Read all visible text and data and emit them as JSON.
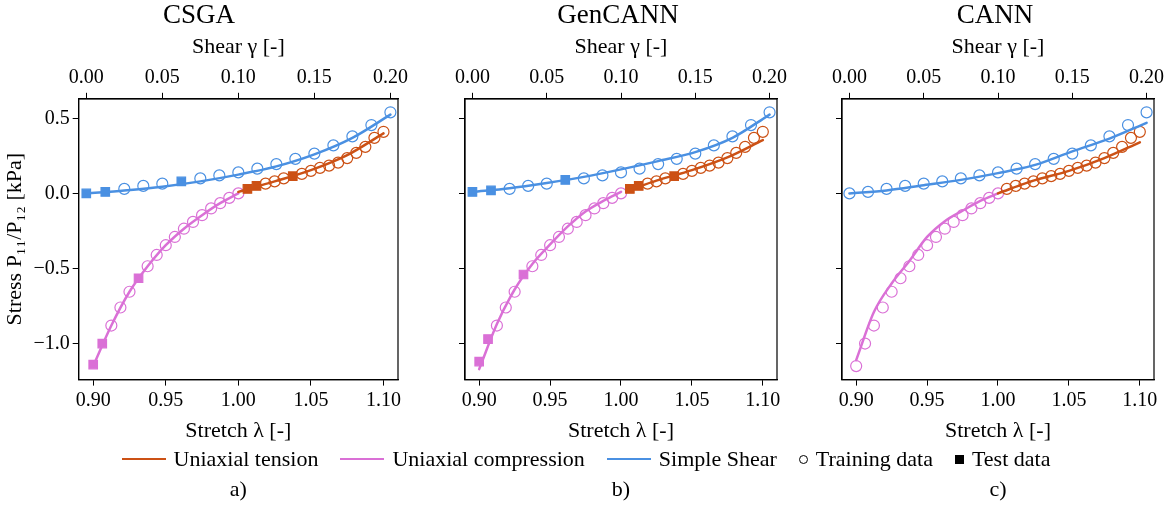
{
  "chart_data": [
    {
      "type": "line",
      "title": "CSGA",
      "xlabel": "Stretch λ [-]",
      "x2label": "Shear γ [-]",
      "ylabel": "Stress P₁₁/P₁₂ [kPa]",
      "legend": "bottom",
      "annotations": [
        "a)"
      ],
      "xlim": [
        0.89,
        1.11
      ],
      "xticks": [
        {
          "value": 0.9,
          "label": "0.90"
        },
        {
          "value": 0.95,
          "label": "0.95"
        },
        {
          "value": 1.0,
          "label": "1.00"
        },
        {
          "value": 1.05,
          "label": "1.05"
        },
        {
          "value": 1.1,
          "label": "1.10"
        }
      ],
      "x2lim": [
        -0.005,
        0.205
      ],
      "x2ticks": [
        {
          "value": 0,
          "label": "0.00"
        },
        {
          "value": 0.05,
          "label": "0.05"
        },
        {
          "value": 0.1,
          "label": "0.10"
        },
        {
          "value": 0.15,
          "label": "0.15"
        },
        {
          "value": 0.2,
          "label": "0.20"
        }
      ],
      "ylim": [
        -1.24,
        0.63
      ],
      "yticks": [
        {
          "value": -1,
          "label": "−1.0"
        },
        {
          "value": -0.5,
          "label": "−0.5"
        },
        {
          "value": 0,
          "label": "0.0"
        },
        {
          "value": 0.5,
          "label": "0.5"
        }
      ],
      "series": [
        {
          "name": "Uniaxial tension",
          "type": "line",
          "color": "#cc5115",
          "marker": "none",
          "x": [
            1.0,
            1.025,
            1.05,
            1.075,
            1.1
          ],
          "values": [
            0.01,
            0.08,
            0.155,
            0.255,
            0.4
          ]
        },
        {
          "name": "Uniaxial compression",
          "type": "line",
          "color": "#da70d6",
          "marker": "none",
          "x": [
            0.9,
            0.9125,
            0.925,
            0.9375,
            0.95,
            0.9625,
            0.975,
            0.9875,
            1.0
          ],
          "values": [
            -1.15,
            -0.88,
            -0.655,
            -0.485,
            -0.345,
            -0.235,
            -0.145,
            -0.065,
            0
          ]
        },
        {
          "name": "Simple Shear",
          "type": "line",
          "color": "#4a90e2",
          "marker": "none",
          "axis": "x2",
          "x": [
            0,
            0.025,
            0.05,
            0.075,
            0.1,
            0.125,
            0.15,
            0.175,
            0.2
          ],
          "values": [
            0,
            0.02,
            0.045,
            0.08,
            0.125,
            0.18,
            0.26,
            0.37,
            0.525
          ]
        },
        {
          "type": "scatter",
          "color": "#cc5115",
          "marker": "circle",
          "x": [
            1.01875,
            1.025,
            1.03125,
            1.04375,
            1.05,
            1.05625,
            1.0625,
            1.06875,
            1.075,
            1.08125,
            1.0875,
            1.09375,
            1.1
          ],
          "values": [
            0.065,
            0.08,
            0.1,
            0.13,
            0.15,
            0.17,
            0.185,
            0.205,
            0.235,
            0.27,
            0.31,
            0.37,
            0.41
          ]
        },
        {
          "type": "scatter",
          "color": "#cc5115",
          "marker": "square",
          "x": [
            1.00625,
            1.0125,
            1.0375
          ],
          "values": [
            0.03,
            0.05,
            0.115
          ]
        },
        {
          "type": "scatter",
          "color": "#da70d6",
          "marker": "circle",
          "x": [
            0.9125,
            0.91875,
            0.925,
            0.9375,
            0.94375,
            0.95,
            0.95625,
            0.9625,
            0.96875,
            0.975,
            0.98125,
            0.9875,
            0.99375,
            1.0
          ],
          "values": [
            -0.88,
            -0.76,
            -0.655,
            -0.485,
            -0.41,
            -0.345,
            -0.29,
            -0.235,
            -0.19,
            -0.145,
            -0.1,
            -0.065,
            -0.03,
            0
          ]
        },
        {
          "type": "scatter",
          "color": "#da70d6",
          "marker": "square",
          "x": [
            0.9,
            0.90625,
            0.93125
          ],
          "values": [
            -1.14,
            -1.0,
            -0.565
          ]
        },
        {
          "type": "scatter",
          "color": "#4a90e2",
          "marker": "circle",
          "axis": "x2",
          "x": [
            0.025,
            0.0375,
            0.05,
            0.075,
            0.0875,
            0.1,
            0.1125,
            0.125,
            0.1375,
            0.15,
            0.1625,
            0.175,
            0.1875,
            0.2
          ],
          "values": [
            0.03,
            0.05,
            0.065,
            0.1,
            0.12,
            0.14,
            0.165,
            0.195,
            0.23,
            0.265,
            0.32,
            0.38,
            0.455,
            0.54
          ]
        },
        {
          "type": "scatter",
          "color": "#4a90e2",
          "marker": "square",
          "axis": "x2",
          "x": [
            0,
            0.0125,
            0.0625
          ],
          "values": [
            0,
            0.01,
            0.08
          ]
        },
        {
          "name": "Training data",
          "type": "scatter",
          "color": "#000000",
          "marker": "circle"
        },
        {
          "name": "Test data",
          "type": "scatter",
          "color": "#000000",
          "marker": "square"
        }
      ]
    },
    {
      "type": "line",
      "title": "GenCANN",
      "xlabel": "Stretch λ [-]",
      "x2label": "Shear γ [-]",
      "tick_labels": "x",
      "annotations": [
        "b)"
      ],
      "xlim": [
        0.89,
        1.11
      ],
      "xticks": [
        {
          "value": 0.9,
          "label": "0.90"
        },
        {
          "value": 0.95,
          "label": "0.95"
        },
        {
          "value": 1.0,
          "label": "1.00"
        },
        {
          "value": 1.05,
          "label": "1.05"
        },
        {
          "value": 1.1,
          "label": "1.10"
        }
      ],
      "x2lim": [
        -0.005,
        0.205
      ],
      "x2ticks": [
        {
          "value": 0,
          "label": "0.00"
        },
        {
          "value": 0.05,
          "label": "0.05"
        },
        {
          "value": 0.1,
          "label": "0.10"
        },
        {
          "value": 0.15,
          "label": "0.15"
        },
        {
          "value": 0.2,
          "label": "0.20"
        }
      ],
      "ylim": [
        -1.24,
        0.63
      ],
      "yticks": [
        {
          "value": -1,
          "label": null
        },
        {
          "value": -0.5,
          "label": null
        },
        {
          "value": 0,
          "label": null
        },
        {
          "value": 0.5,
          "label": null
        }
      ],
      "series": [
        {
          "type": "line",
          "color": "#cc5115",
          "marker": "none",
          "x": [
            1.005,
            1.025,
            1.05,
            1.075,
            1.1
          ],
          "values": [
            0.02,
            0.085,
            0.155,
            0.24,
            0.355
          ]
        },
        {
          "type": "line",
          "color": "#da70d6",
          "marker": "none",
          "x": [
            0.9,
            0.9125,
            0.925,
            0.9375,
            0.95,
            0.9625,
            0.975,
            0.9875,
            1.0
          ],
          "values": [
            -1.17,
            -0.87,
            -0.64,
            -0.47,
            -0.34,
            -0.22,
            -0.12,
            -0.05,
            0.01
          ]
        },
        {
          "type": "line",
          "color": "#4a90e2",
          "marker": "none",
          "axis": "x2",
          "x": [
            0,
            0.025,
            0.05,
            0.075,
            0.1,
            0.125,
            0.15,
            0.175,
            0.2
          ],
          "values": [
            0.01,
            0.035,
            0.07,
            0.11,
            0.16,
            0.215,
            0.275,
            0.37,
            0.525
          ]
        },
        {
          "type": "scatter",
          "color": "#cc5115",
          "marker": "circle",
          "x": [
            1.01875,
            1.025,
            1.03125,
            1.04375,
            1.05,
            1.05625,
            1.0625,
            1.06875,
            1.075,
            1.08125,
            1.0875,
            1.09375,
            1.1
          ],
          "values": [
            0.065,
            0.08,
            0.1,
            0.13,
            0.15,
            0.17,
            0.185,
            0.205,
            0.235,
            0.27,
            0.31,
            0.37,
            0.41
          ]
        },
        {
          "type": "scatter",
          "color": "#cc5115",
          "marker": "square",
          "x": [
            1.00625,
            1.0125,
            1.0375
          ],
          "values": [
            0.03,
            0.05,
            0.115
          ]
        },
        {
          "type": "scatter",
          "color": "#da70d6",
          "marker": "circle",
          "x": [
            0.9125,
            0.91875,
            0.925,
            0.9375,
            0.94375,
            0.95,
            0.95625,
            0.9625,
            0.96875,
            0.975,
            0.98125,
            0.9875,
            0.99375,
            1.0
          ],
          "values": [
            -0.88,
            -0.76,
            -0.655,
            -0.485,
            -0.41,
            -0.345,
            -0.29,
            -0.235,
            -0.19,
            -0.145,
            -0.1,
            -0.065,
            -0.03,
            0
          ]
        },
        {
          "type": "scatter",
          "color": "#da70d6",
          "marker": "square",
          "x": [
            0.9,
            0.90625,
            0.93125
          ],
          "values": [
            -1.12,
            -0.97,
            -0.54
          ]
        },
        {
          "type": "scatter",
          "color": "#4a90e2",
          "marker": "circle",
          "axis": "x2",
          "x": [
            0.025,
            0.0375,
            0.05,
            0.075,
            0.0875,
            0.1,
            0.1125,
            0.125,
            0.1375,
            0.15,
            0.1625,
            0.175,
            0.1875,
            0.2
          ],
          "values": [
            0.03,
            0.05,
            0.065,
            0.1,
            0.12,
            0.14,
            0.165,
            0.195,
            0.23,
            0.265,
            0.32,
            0.38,
            0.455,
            0.54
          ]
        },
        {
          "type": "scatter",
          "color": "#4a90e2",
          "marker": "square",
          "axis": "x2",
          "x": [
            0,
            0.0125,
            0.0625
          ],
          "values": [
            0.01,
            0.02,
            0.09
          ]
        }
      ]
    },
    {
      "type": "line",
      "title": "CANN",
      "xlabel": "Stretch λ [-]",
      "x2label": "Shear γ [-]",
      "tick_labels": "x",
      "annotations": [
        "c)"
      ],
      "xlim": [
        0.89,
        1.11
      ],
      "xticks": [
        {
          "value": 0.9,
          "label": "0.90"
        },
        {
          "value": 0.95,
          "label": "0.95"
        },
        {
          "value": 1.0,
          "label": "1.00"
        },
        {
          "value": 1.05,
          "label": "1.05"
        },
        {
          "value": 1.1,
          "label": "1.10"
        }
      ],
      "x2lim": [
        -0.005,
        0.205
      ],
      "x2ticks": [
        {
          "value": 0,
          "label": "0.00"
        },
        {
          "value": 0.05,
          "label": "0.05"
        },
        {
          "value": 0.1,
          "label": "0.10"
        },
        {
          "value": 0.15,
          "label": "0.15"
        },
        {
          "value": 0.2,
          "label": "0.20"
        }
      ],
      "ylim": [
        -1.24,
        0.63
      ],
      "yticks": [
        {
          "value": -1,
          "label": null
        },
        {
          "value": -0.5,
          "label": null
        },
        {
          "value": 0,
          "label": null
        },
        {
          "value": 0.5,
          "label": null
        }
      ],
      "series": [
        {
          "type": "line",
          "color": "#cc5115",
          "marker": "none",
          "x": [
            1.0,
            1.025,
            1.05,
            1.075,
            1.1
          ],
          "values": [
            0,
            0.085,
            0.15,
            0.235,
            0.34
          ]
        },
        {
          "type": "line",
          "color": "#da70d6",
          "marker": "none",
          "x": [
            0.9,
            0.9125,
            0.925,
            0.9375,
            0.95,
            0.9625,
            0.975,
            0.9875,
            1.0
          ],
          "values": [
            -1.11,
            -0.79,
            -0.6,
            -0.45,
            -0.29,
            -0.185,
            -0.115,
            -0.05,
            0
          ]
        },
        {
          "type": "line",
          "color": "#4a90e2",
          "marker": "none",
          "axis": "x2",
          "x": [
            0,
            0.025,
            0.05,
            0.075,
            0.1,
            0.125,
            0.15,
            0.175,
            0.2
          ],
          "values": [
            0,
            0.02,
            0.055,
            0.09,
            0.135,
            0.19,
            0.28,
            0.365,
            0.47
          ]
        },
        {
          "type": "scatter",
          "color": "#cc5115",
          "marker": "circle",
          "x": [
            1.00625,
            1.0125,
            1.01875,
            1.025,
            1.03125,
            1.0375,
            1.04375,
            1.05,
            1.05625,
            1.0625,
            1.06875,
            1.075,
            1.08125,
            1.0875,
            1.09375,
            1.1
          ],
          "values": [
            0.03,
            0.05,
            0.065,
            0.08,
            0.1,
            0.115,
            0.13,
            0.15,
            0.17,
            0.185,
            0.205,
            0.235,
            0.27,
            0.31,
            0.37,
            0.41
          ]
        },
        {
          "type": "scatter",
          "color": "#da70d6",
          "marker": "circle",
          "x": [
            0.9,
            0.90625,
            0.9125,
            0.91875,
            0.925,
            0.93125,
            0.9375,
            0.94375,
            0.95,
            0.95625,
            0.9625,
            0.96875,
            0.975,
            0.98125,
            0.9875,
            0.99375,
            1.0
          ],
          "values": [
            -1.15,
            -1.0,
            -0.88,
            -0.76,
            -0.655,
            -0.565,
            -0.485,
            -0.41,
            -0.345,
            -0.29,
            -0.235,
            -0.19,
            -0.145,
            -0.1,
            -0.065,
            -0.03,
            0
          ]
        },
        {
          "type": "scatter",
          "color": "#4a90e2",
          "marker": "circle",
          "axis": "x2",
          "x": [
            0,
            0.0125,
            0.025,
            0.0375,
            0.05,
            0.0625,
            0.075,
            0.0875,
            0.1,
            0.1125,
            0.125,
            0.1375,
            0.15,
            0.1625,
            0.175,
            0.1875,
            0.2
          ],
          "values": [
            0,
            0.01,
            0.03,
            0.05,
            0.065,
            0.08,
            0.1,
            0.12,
            0.14,
            0.165,
            0.195,
            0.23,
            0.265,
            0.32,
            0.38,
            0.455,
            0.54
          ]
        }
      ]
    }
  ]
}
